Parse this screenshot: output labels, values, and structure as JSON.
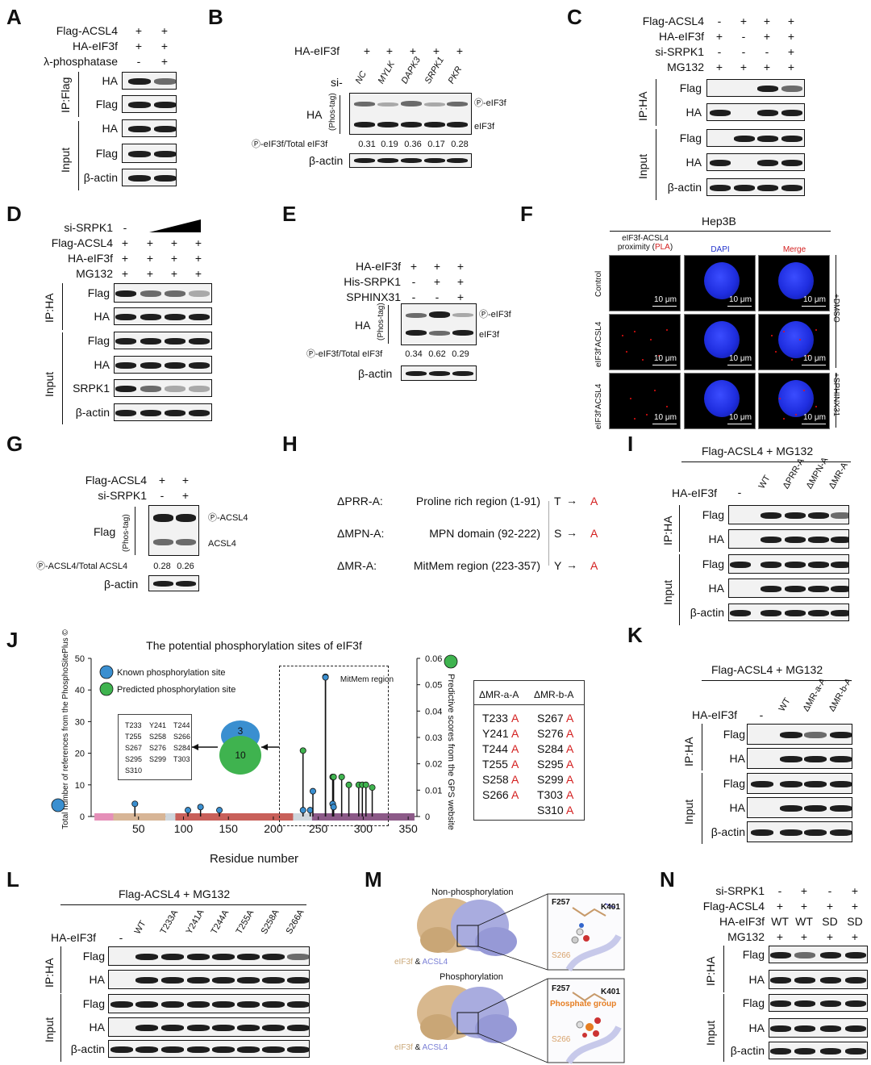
{
  "panels": {
    "A": {
      "label": "A",
      "conditions": [
        {
          "name": "Flag-ACSL4",
          "values": [
            "+",
            "+"
          ]
        },
        {
          "name": "HA-eIF3f",
          "values": [
            "+",
            "+"
          ]
        },
        {
          "name": "λ-phosphatase",
          "values": [
            "-",
            "+"
          ]
        }
      ],
      "groups": [
        "IP:Flag",
        "Input"
      ],
      "rows": [
        "HA",
        "Flag",
        "HA",
        "Flag",
        "β-actin"
      ]
    },
    "B": {
      "label": "B",
      "treatment": "HA-eIF3f",
      "treatment_values": [
        "+",
        "+",
        "+",
        "+",
        "+"
      ],
      "si_label": "si-",
      "si_targets": [
        "NC",
        "MYLK",
        "DAPK3",
        "SRPK1",
        "PKR"
      ],
      "row": "HA",
      "phos_tag": "(Phos-tag)",
      "band_labels": [
        "Ⓟ-eIF3f",
        "eIF3f"
      ],
      "ratio_label": "Ⓟ-eIF3f/Total eIF3f",
      "ratios": [
        "0.31",
        "0.19",
        "0.36",
        "0.17",
        "0.28"
      ],
      "loading": "β-actin"
    },
    "C": {
      "label": "C",
      "conditions": [
        {
          "name": "Flag-ACSL4",
          "values": [
            "-",
            "+",
            "+",
            "+"
          ]
        },
        {
          "name": "HA-eIF3f",
          "values": [
            "+",
            "-",
            "+",
            "+"
          ]
        },
        {
          "name": "si-SRPK1",
          "values": [
            "-",
            "-",
            "-",
            "+"
          ]
        },
        {
          "name": "MG132",
          "values": [
            "+",
            "+",
            "+",
            "+"
          ]
        }
      ],
      "groups": [
        "IP:HA",
        "Input"
      ],
      "rows": [
        "Flag",
        "HA",
        "Flag",
        "HA",
        "β-actin"
      ]
    },
    "D": {
      "label": "D",
      "conditions": [
        {
          "name": "si-SRPK1",
          "values": [
            "-",
            "",
            "",
            ""
          ]
        },
        {
          "name": "Flag-ACSL4",
          "values": [
            "+",
            "+",
            "+",
            "+"
          ]
        },
        {
          "name": "HA-eIF3f",
          "values": [
            "+",
            "+",
            "+",
            "+"
          ]
        },
        {
          "name": "MG132",
          "values": [
            "+",
            "+",
            "+",
            "+"
          ]
        }
      ],
      "groups": [
        "IP:HA",
        "Input"
      ],
      "rows": [
        "Flag",
        "HA",
        "Flag",
        "HA",
        "SRPK1",
        "β-actin"
      ]
    },
    "E": {
      "label": "E",
      "conditions": [
        {
          "name": "HA-eIF3f",
          "values": [
            "+",
            "+",
            "+"
          ]
        },
        {
          "name": "His-SRPK1",
          "values": [
            "-",
            "+",
            "+"
          ]
        },
        {
          "name": "SPHINX31",
          "values": [
            "-",
            "-",
            "+"
          ]
        }
      ],
      "row": "HA",
      "phos_tag": "(Phos-tag)",
      "band_labels": [
        "Ⓟ-eIF3f",
        "eIF3f"
      ],
      "ratio_label": "Ⓟ-eIF3f/Total eIF3f",
      "ratios": [
        "0.34",
        "0.62",
        "0.29"
      ],
      "loading": "β-actin"
    },
    "F": {
      "label": "F",
      "cell_line": "Hep3B",
      "col_headers": [
        "eIF3f-ACSL4 proximity (",
        "PLA",
        ")",
        "DAPI",
        "Merge"
      ],
      "row_labels": [
        "Control",
        "eIF3f'ACSL4",
        "eIF3f'ACSL4"
      ],
      "side_labels": [
        "+DMSO",
        "+SPHINX31"
      ],
      "scale": "10 μm"
    },
    "G": {
      "label": "G",
      "conditions": [
        {
          "name": "Flag-ACSL4",
          "values": [
            "+",
            "+"
          ]
        },
        {
          "name": "si-SRPK1",
          "values": [
            "-",
            "+"
          ]
        }
      ],
      "row": "Flag",
      "phos_tag": "(Phos-tag)",
      "band_labels": [
        "Ⓟ-ACSL4",
        "ACSL4"
      ],
      "ratio_label": "Ⓟ-ACSL4/Total ACSL4",
      "ratios": [
        "0.28",
        "0.26"
      ],
      "loading": "β-actin"
    },
    "H": {
      "label": "H",
      "mutants": [
        {
          "name": "ΔPRR-A:",
          "region": "Proline rich region (1-91)",
          "from": "T",
          "to": "A"
        },
        {
          "name": "ΔMPN-A:",
          "region": "MPN domain (92-222)",
          "from": "S",
          "to": "A"
        },
        {
          "name": "ΔMR-A:",
          "region": "MitMem region (223-357)",
          "from": "Y",
          "to": "A"
        }
      ]
    },
    "I": {
      "label": "I",
      "header": "Flag-ACSL4 + MG132",
      "treatment": "HA-eIF3f",
      "lanes": [
        "-",
        "WT",
        "ΔPRR-A",
        "ΔMPN-A",
        "ΔMR-A"
      ],
      "groups": [
        "IP:HA",
        "Input"
      ],
      "rows": [
        "Flag",
        "HA",
        "Flag",
        "HA",
        "β-actin"
      ]
    },
    "J": {
      "label": "J",
      "venn_known": "3",
      "venn_predicted": "10",
      "region_label": "MitMem region",
      "site_list": [
        [
          "T233",
          "Y241",
          "T244"
        ],
        [
          "T255",
          "S258",
          "S266"
        ],
        [
          "S267",
          "S276",
          "S284"
        ],
        [
          "S295",
          "S299",
          "T303"
        ],
        [
          "S310",
          "",
          ""
        ]
      ],
      "table_headers": [
        "ΔMR-a-A",
        "ΔMR-b-A"
      ],
      "table_a": [
        {
          "site": "T233",
          "to": "A"
        },
        {
          "site": "Y241",
          "to": "A"
        },
        {
          "site": "T244",
          "to": "A"
        },
        {
          "site": "T255",
          "to": "A"
        },
        {
          "site": "S258",
          "to": "A"
        },
        {
          "site": "S266",
          "to": "A"
        }
      ],
      "table_b": [
        {
          "site": "S267",
          "to": "A"
        },
        {
          "site": "S276",
          "to": "A"
        },
        {
          "site": "S284",
          "to": "A"
        },
        {
          "site": "S295",
          "to": "A"
        },
        {
          "site": "S299",
          "to": "A"
        },
        {
          "site": "T303",
          "to": "A"
        },
        {
          "site": "S310",
          "to": "A"
        }
      ]
    },
    "K": {
      "label": "K",
      "header": "Flag-ACSL4 + MG132",
      "treatment": "HA-eIF3f",
      "lanes": [
        "-",
        "WT",
        "ΔMR-a-A",
        "ΔMR-b-A"
      ],
      "groups": [
        "IP:HA",
        "Input"
      ],
      "rows": [
        "Flag",
        "HA",
        "Flag",
        "HA",
        "β-actin"
      ]
    },
    "L": {
      "label": "L",
      "header": "Flag-ACSL4 + MG132",
      "treatment": "HA-eIF3f",
      "lanes": [
        "-",
        "WT",
        "T233A",
        "Y241A",
        "T244A",
        "T255A",
        "S258A",
        "S266A"
      ],
      "groups": [
        "IP:HA",
        "Input"
      ],
      "rows": [
        "Flag",
        "HA",
        "Flag",
        "HA",
        "β-actin"
      ]
    },
    "M": {
      "label": "M",
      "top_title": "Non-phosphorylation",
      "bottom_title": "Phosphorylation",
      "legend": [
        "eIF3f",
        "&",
        "ACSL4"
      ],
      "residues": [
        "F257",
        "K401",
        "S266"
      ],
      "phosphate": "Phosphate group"
    },
    "N": {
      "label": "N",
      "conditions": [
        {
          "name": "si-SRPK1",
          "values": [
            "-",
            "+",
            "-",
            "+"
          ]
        },
        {
          "name": "Flag-ACSL4",
          "values": [
            "+",
            "+",
            "+",
            "+"
          ]
        },
        {
          "name": "HA-eIF3f",
          "values": [
            "WT",
            "WT",
            "SD",
            "SD"
          ]
        },
        {
          "name": "MG132",
          "values": [
            "+",
            "+",
            "+",
            "+"
          ]
        }
      ],
      "groups": [
        "IP:HA",
        "Input"
      ],
      "rows": [
        "Flag",
        "HA",
        "Flag",
        "HA",
        "β-actin"
      ]
    }
  },
  "chart_data": {
    "type": "scatter",
    "title": "The potential phosphorylation sites of eIF3f",
    "xlabel": "Residue number",
    "ylabel": "Total number of references from the PhosphoSitePlus ©",
    "y2label": "Predictive scores from the GPS website",
    "xlim": [
      0,
      357
    ],
    "ylim": [
      0,
      50
    ],
    "y2lim": [
      0,
      0.06
    ],
    "xticks": [
      "50",
      "100",
      "150",
      "200",
      "250",
      "300",
      "350"
    ],
    "yticks": [
      "0",
      "10",
      "20",
      "30",
      "40",
      "50"
    ],
    "y2ticks": [
      "0",
      "0.01",
      "0.02",
      "0.03",
      "0.04",
      "0.05",
      "0.06"
    ],
    "legend": [
      "Known phosphorylation site",
      "Predicted phosphorylation site"
    ],
    "series": [
      {
        "name": "Known phosphorylation site",
        "color": "#3a8fd0",
        "x": [
          46,
          105,
          119,
          140,
          233,
          241,
          244,
          258,
          266,
          267
        ],
        "y": [
          4,
          2,
          3,
          2,
          2,
          2,
          8,
          44,
          4,
          3
        ]
      },
      {
        "name": "Predicted phosphorylation site",
        "color": "#3fb34f",
        "x": [
          233,
          258,
          266,
          267,
          276,
          284,
          295,
          299,
          303,
          310
        ],
        "y": [
          0.025,
          0.053,
          0.015,
          0.015,
          0.015,
          0.012,
          0.012,
          0.012,
          0.012,
          0.011
        ]
      }
    ],
    "domains": [
      {
        "start": 1,
        "end": 22,
        "color": "#e58fb8"
      },
      {
        "start": 22,
        "end": 80,
        "color": "#d7b596"
      },
      {
        "start": 80,
        "end": 91,
        "color": "#cfd6dc"
      },
      {
        "start": 91,
        "end": 222,
        "color": "#c8605a"
      },
      {
        "start": 222,
        "end": 243,
        "color": "#cfd6dc"
      },
      {
        "start": 243,
        "end": 357,
        "color": "#8c5a88"
      }
    ]
  }
}
